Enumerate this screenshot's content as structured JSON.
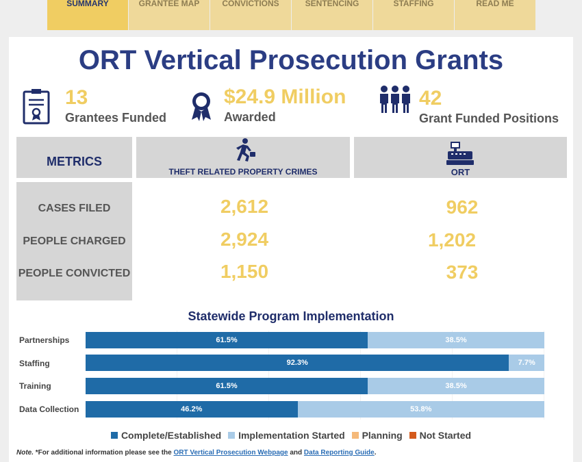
{
  "tabs": [
    "SUMMARY",
    "GRANTEE MAP",
    "CONVICTIONS",
    "SENTENCING",
    "STAFFING",
    "READ ME"
  ],
  "title": "ORT Vertical Prosecution Grants",
  "kpis": {
    "grantees_num": "13",
    "grantees_label": "Grantees Funded",
    "awarded_num": "$24.9 Million",
    "awarded_label": "Awarded",
    "positions_num": "42",
    "positions_label": "Grant Funded Positions"
  },
  "metrics": {
    "header": "METRICS",
    "col1": "THEFT RELATED PROPERTY CRIMES",
    "col2": "ORT",
    "rows": [
      {
        "label": "CASES FILED",
        "theft": "2,612",
        "ort": "962"
      },
      {
        "label": "PEOPLE CHARGED",
        "theft": "2,924",
        "ort": "1,202"
      },
      {
        "label": "PEOPLE CONVICTED",
        "theft": "1,150",
        "ort": "373"
      }
    ]
  },
  "implementation": {
    "title": "Statewide Program Implementation",
    "rows": [
      {
        "label": "Partnerships",
        "complete": 61.5,
        "started": 38.5,
        "complete_text": "61.5%",
        "started_text": "38.5%"
      },
      {
        "label": "Staffing",
        "complete": 92.3,
        "started": 7.7,
        "complete_text": "92.3%",
        "started_text": "7.7%"
      },
      {
        "label": "Training",
        "complete": 61.5,
        "started": 38.5,
        "complete_text": "61.5%",
        "started_text": "38.5%"
      },
      {
        "label": "Data Collection",
        "complete": 46.2,
        "started": 53.8,
        "complete_text": "46.2%",
        "started_text": "53.8%"
      }
    ],
    "legend": [
      {
        "label": "Complete/Established",
        "color": "#1f6ba7"
      },
      {
        "label": "Implementation Started",
        "color": "#a9cbe7"
      },
      {
        "label": "Planning",
        "color": "#f5b97a"
      },
      {
        "label": "Not Started",
        "color": "#d45a1c"
      }
    ]
  },
  "note": {
    "prefix": "Note.",
    "text": " *For additional information please see the ",
    "link1": "ORT Vertical Prosecution Webpage",
    "and": " and ",
    "link2": "Data Reporting Guide",
    "end": "."
  }
}
